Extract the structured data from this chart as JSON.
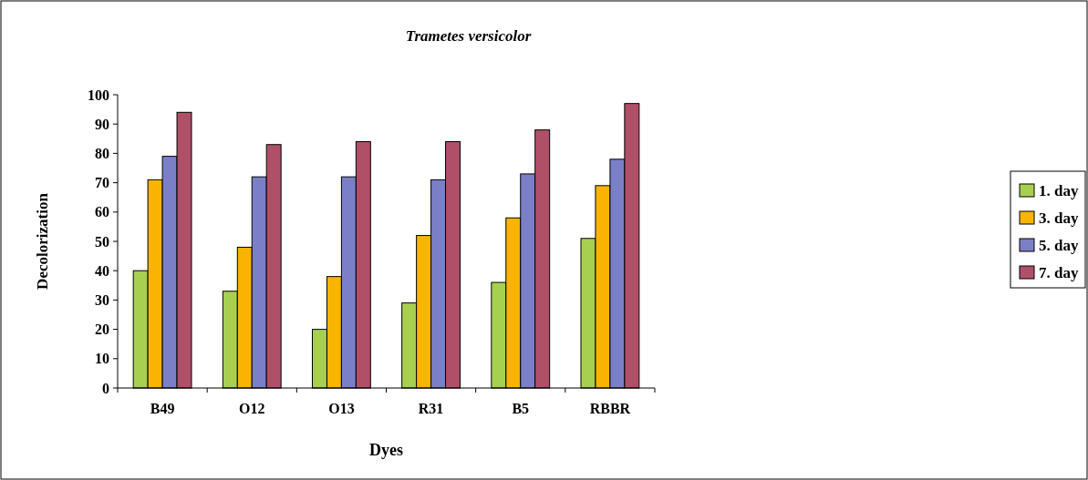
{
  "chart_data": {
    "type": "bar",
    "title": "Trametes versicolor",
    "xlabel": "Dyes",
    "ylabel": "Decolorization",
    "categories": [
      "B49",
      "O12",
      "O13",
      "R31",
      "B5",
      "RBBR"
    ],
    "series": [
      {
        "name": "1. day",
        "color": "#a8d050",
        "values": [
          40,
          33,
          20,
          29,
          36,
          51
        ]
      },
      {
        "name": "3. day",
        "color": "#f8b400",
        "values": [
          71,
          48,
          38,
          52,
          58,
          69
        ]
      },
      {
        "name": "5. day",
        "color": "#7b7fc8",
        "values": [
          79,
          72,
          72,
          71,
          73,
          78
        ]
      },
      {
        "name": "7. day",
        "color": "#b05068",
        "values": [
          94,
          83,
          84,
          84,
          88,
          97
        ]
      }
    ],
    "ylim": [
      0,
      100
    ],
    "yticks": [
      0,
      10,
      20,
      30,
      40,
      50,
      60,
      70,
      80,
      90,
      100
    ],
    "grid": false,
    "legend": "right"
  }
}
